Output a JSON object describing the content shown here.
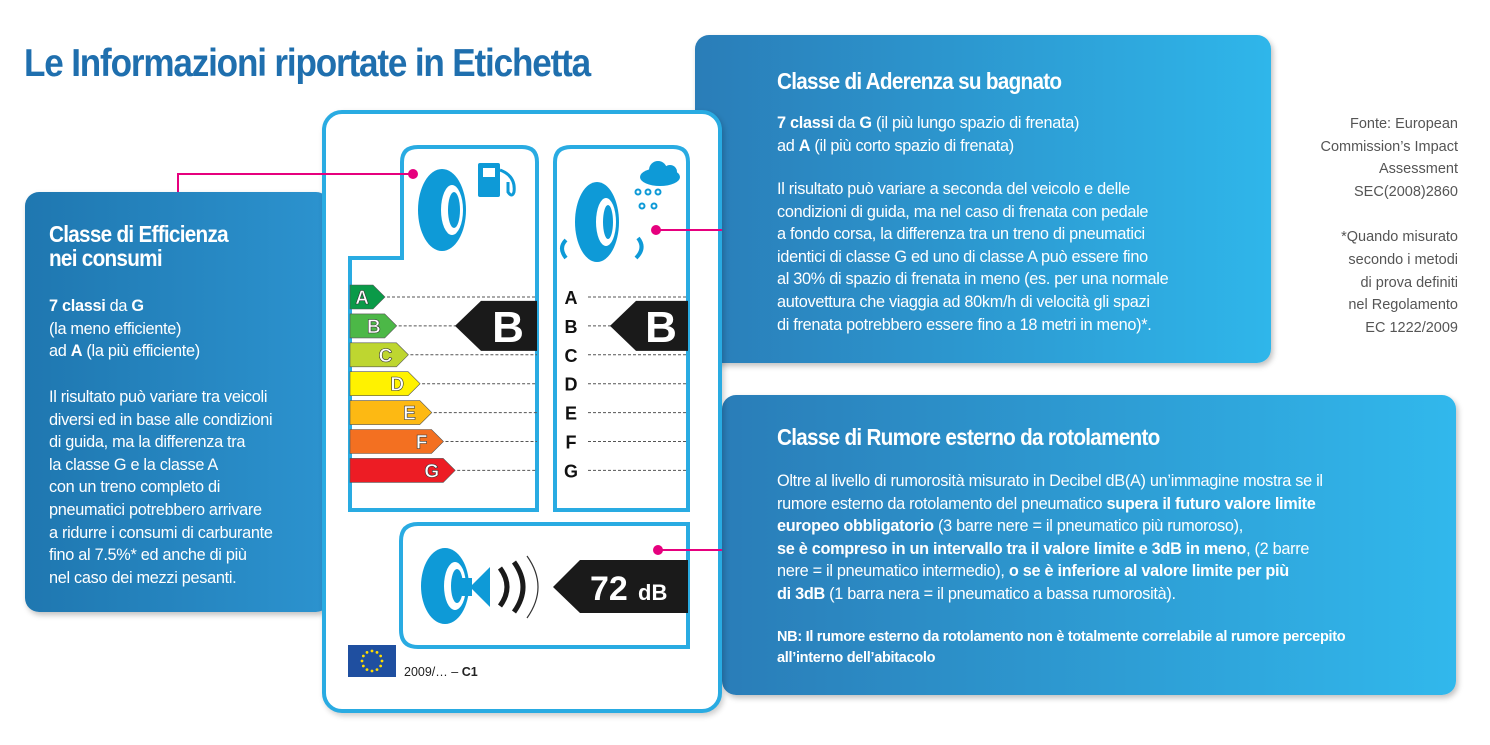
{
  "title": "Le Informazioni riportate in Etichetta",
  "colors": {
    "title": "#1f6fae",
    "label_border": "#29abe2",
    "callout_line": "#e6007e",
    "arrow": "#1a1a1a"
  },
  "left": {
    "title": [
      "Classe di Efficienza",
      "nei consumi"
    ],
    "p1": [
      [
        {
          "t": "7 classi",
          "b": true
        },
        {
          "t": " da "
        },
        {
          "t": "G",
          "b": true
        }
      ],
      [
        {
          "t": "(la meno efficiente)"
        }
      ],
      [
        {
          "t": "ad "
        },
        {
          "t": "A",
          "b": true
        },
        {
          "t": " (la più efficiente)"
        }
      ]
    ],
    "p2": [
      [
        {
          "t": "Il risultato può variare tra veicoli"
        }
      ],
      [
        {
          "t": "diversi ed in base alle condizioni"
        }
      ],
      [
        {
          "t": "di guida, ma la differenza tra"
        }
      ],
      [
        {
          "t": "la classe G e la classe A"
        }
      ],
      [
        {
          "t": "con un treno completo di"
        }
      ],
      [
        {
          "t": "pneumatici potrebbero arrivare"
        }
      ],
      [
        {
          "t": "a ridurre i consumi di carburante"
        }
      ],
      [
        {
          "t": "fino al 7.5%* ed anche di più"
        }
      ],
      [
        {
          "t": "nel caso dei mezzi pesanti."
        }
      ]
    ]
  },
  "wet": {
    "title": "Classe di Aderenza su bagnato",
    "p1": [
      [
        {
          "t": "7 classi",
          "b": true
        },
        {
          "t": " da "
        },
        {
          "t": "G",
          "b": true
        },
        {
          "t": " (il più lungo spazio di frenata)"
        }
      ],
      [
        {
          "t": "ad "
        },
        {
          "t": "A",
          "b": true
        },
        {
          "t": " (il più corto spazio di frenata)"
        }
      ]
    ],
    "p2": [
      [
        {
          "t": "Il risultato può variare a seconda del veicolo e delle"
        }
      ],
      [
        {
          "t": "condizioni di guida, ma nel caso di frenata con pedale"
        }
      ],
      [
        {
          "t": "a fondo corsa, la differenza tra un treno di pneumatici"
        }
      ],
      [
        {
          "t": "identici di classe G ed uno di classe A può essere fino"
        }
      ],
      [
        {
          "t": "al 30% di spazio di frenata in meno (es. per una normale"
        }
      ],
      [
        {
          "t": "autovettura che viaggia ad 80km/h di velocità gli spazi"
        }
      ],
      [
        {
          "t": "di frenata potrebbero essere fino a 18 metri in meno)*."
        }
      ]
    ]
  },
  "noise": {
    "title": "Classe di Rumore esterno da rotolamento",
    "p1": [
      [
        {
          "t": "Oltre al livello di rumorosità misurato in Decibel dB(A) un’immagine mostra se il"
        }
      ],
      [
        {
          "t": "rumore esterno da rotolamento del pneumatico "
        },
        {
          "t": "supera il futuro valore limite",
          "b": true
        }
      ],
      [
        {
          "t": "europeo obbligatorio",
          "b": true
        },
        {
          "t": " (3 barre nere = il pneumatico più rumoroso),"
        }
      ],
      [
        {
          "t": "se è compreso in un intervallo tra il valore limite e 3dB in meno",
          "b": true
        },
        {
          "t": ", (2 barre"
        }
      ],
      [
        {
          "t": "nere = il pneumatico intermedio), "
        },
        {
          "t": "o se è inferiore al valore limite per più",
          "b": true
        }
      ],
      [
        {
          "t": "di 3dB",
          "b": true
        },
        {
          "t": " (1 barra nera = il pneumatico a bassa rumorosità)."
        }
      ]
    ],
    "nb": [
      "NB: Il rumore esterno da rotolamento non è totalmente correlabile al rumore percepito",
      "all’interno dell’abitacolo"
    ]
  },
  "notes": {
    "source": [
      "Fonte: European",
      "Commission’s Impact",
      "Assessment",
      "SEC(2008)2860"
    ],
    "footnote": [
      "*Quando misurato",
      "secondo i metodi",
      "di prova definiti",
      "nel Regolamento",
      "EC 1222/2009"
    ]
  },
  "label": {
    "classes": [
      "A",
      "B",
      "C",
      "D",
      "E",
      "F",
      "G"
    ],
    "class_colors": [
      "#0a9a48",
      "#4cb847",
      "#bed630",
      "#fff200",
      "#fdb913",
      "#f37021",
      "#ed1c24"
    ],
    "fuel_class": "B",
    "wet_class": "B",
    "noise_value": "72",
    "noise_unit": "dB",
    "regulation": "2009/… – ",
    "tyre_class": "C1",
    "icons": [
      "fuel-pump-icon",
      "rain-cloud-icon",
      "tyre-icon",
      "speaker-icon",
      "eu-flag-icon"
    ]
  }
}
